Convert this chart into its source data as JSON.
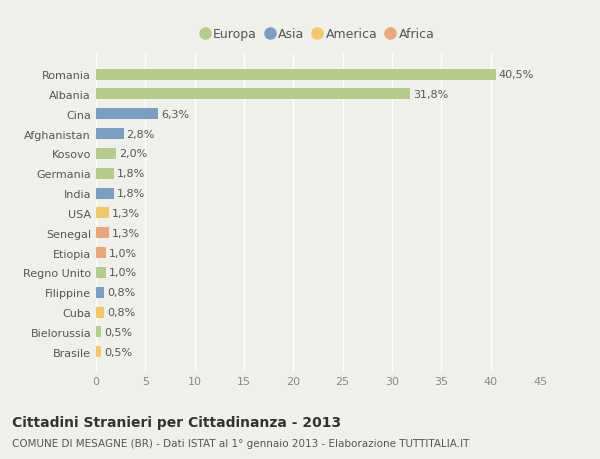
{
  "title": "Cittadini Stranieri per Cittadinanza - 2013",
  "subtitle": "COMUNE DI MESAGNE (BR) - Dati ISTAT al 1° gennaio 2013 - Elaborazione TUTTITALIA.IT",
  "categories": [
    "Romania",
    "Albania",
    "Cina",
    "Afghanistan",
    "Kosovo",
    "Germania",
    "India",
    "USA",
    "Senegal",
    "Etiopia",
    "Regno Unito",
    "Filippine",
    "Cuba",
    "Bielorussia",
    "Brasile"
  ],
  "values": [
    40.5,
    31.8,
    6.3,
    2.8,
    2.0,
    1.8,
    1.8,
    1.3,
    1.3,
    1.0,
    1.0,
    0.8,
    0.8,
    0.5,
    0.5
  ],
  "labels": [
    "40,5%",
    "31,8%",
    "6,3%",
    "2,8%",
    "2,0%",
    "1,8%",
    "1,8%",
    "1,3%",
    "1,3%",
    "1,0%",
    "1,0%",
    "0,8%",
    "0,8%",
    "0,5%",
    "0,5%"
  ],
  "continents": [
    "Europa",
    "Europa",
    "Asia",
    "Asia",
    "Europa",
    "Europa",
    "Asia",
    "America",
    "Africa",
    "Africa",
    "Europa",
    "Asia",
    "America",
    "Europa",
    "America"
  ],
  "colors": {
    "Europa": "#b5cc8e",
    "Asia": "#7b9dc0",
    "America": "#f0c76a",
    "Africa": "#e8a87c"
  },
  "legend_order": [
    "Europa",
    "Asia",
    "America",
    "Africa"
  ],
  "xlim": [
    0,
    45
  ],
  "xticks": [
    0,
    5,
    10,
    15,
    20,
    25,
    30,
    35,
    40,
    45
  ],
  "background_color": "#f0f0eb",
  "grid_color": "#ffffff",
  "bar_height": 0.55,
  "title_fontsize": 10,
  "subtitle_fontsize": 7.5,
  "tick_fontsize": 8,
  "label_fontsize": 8
}
